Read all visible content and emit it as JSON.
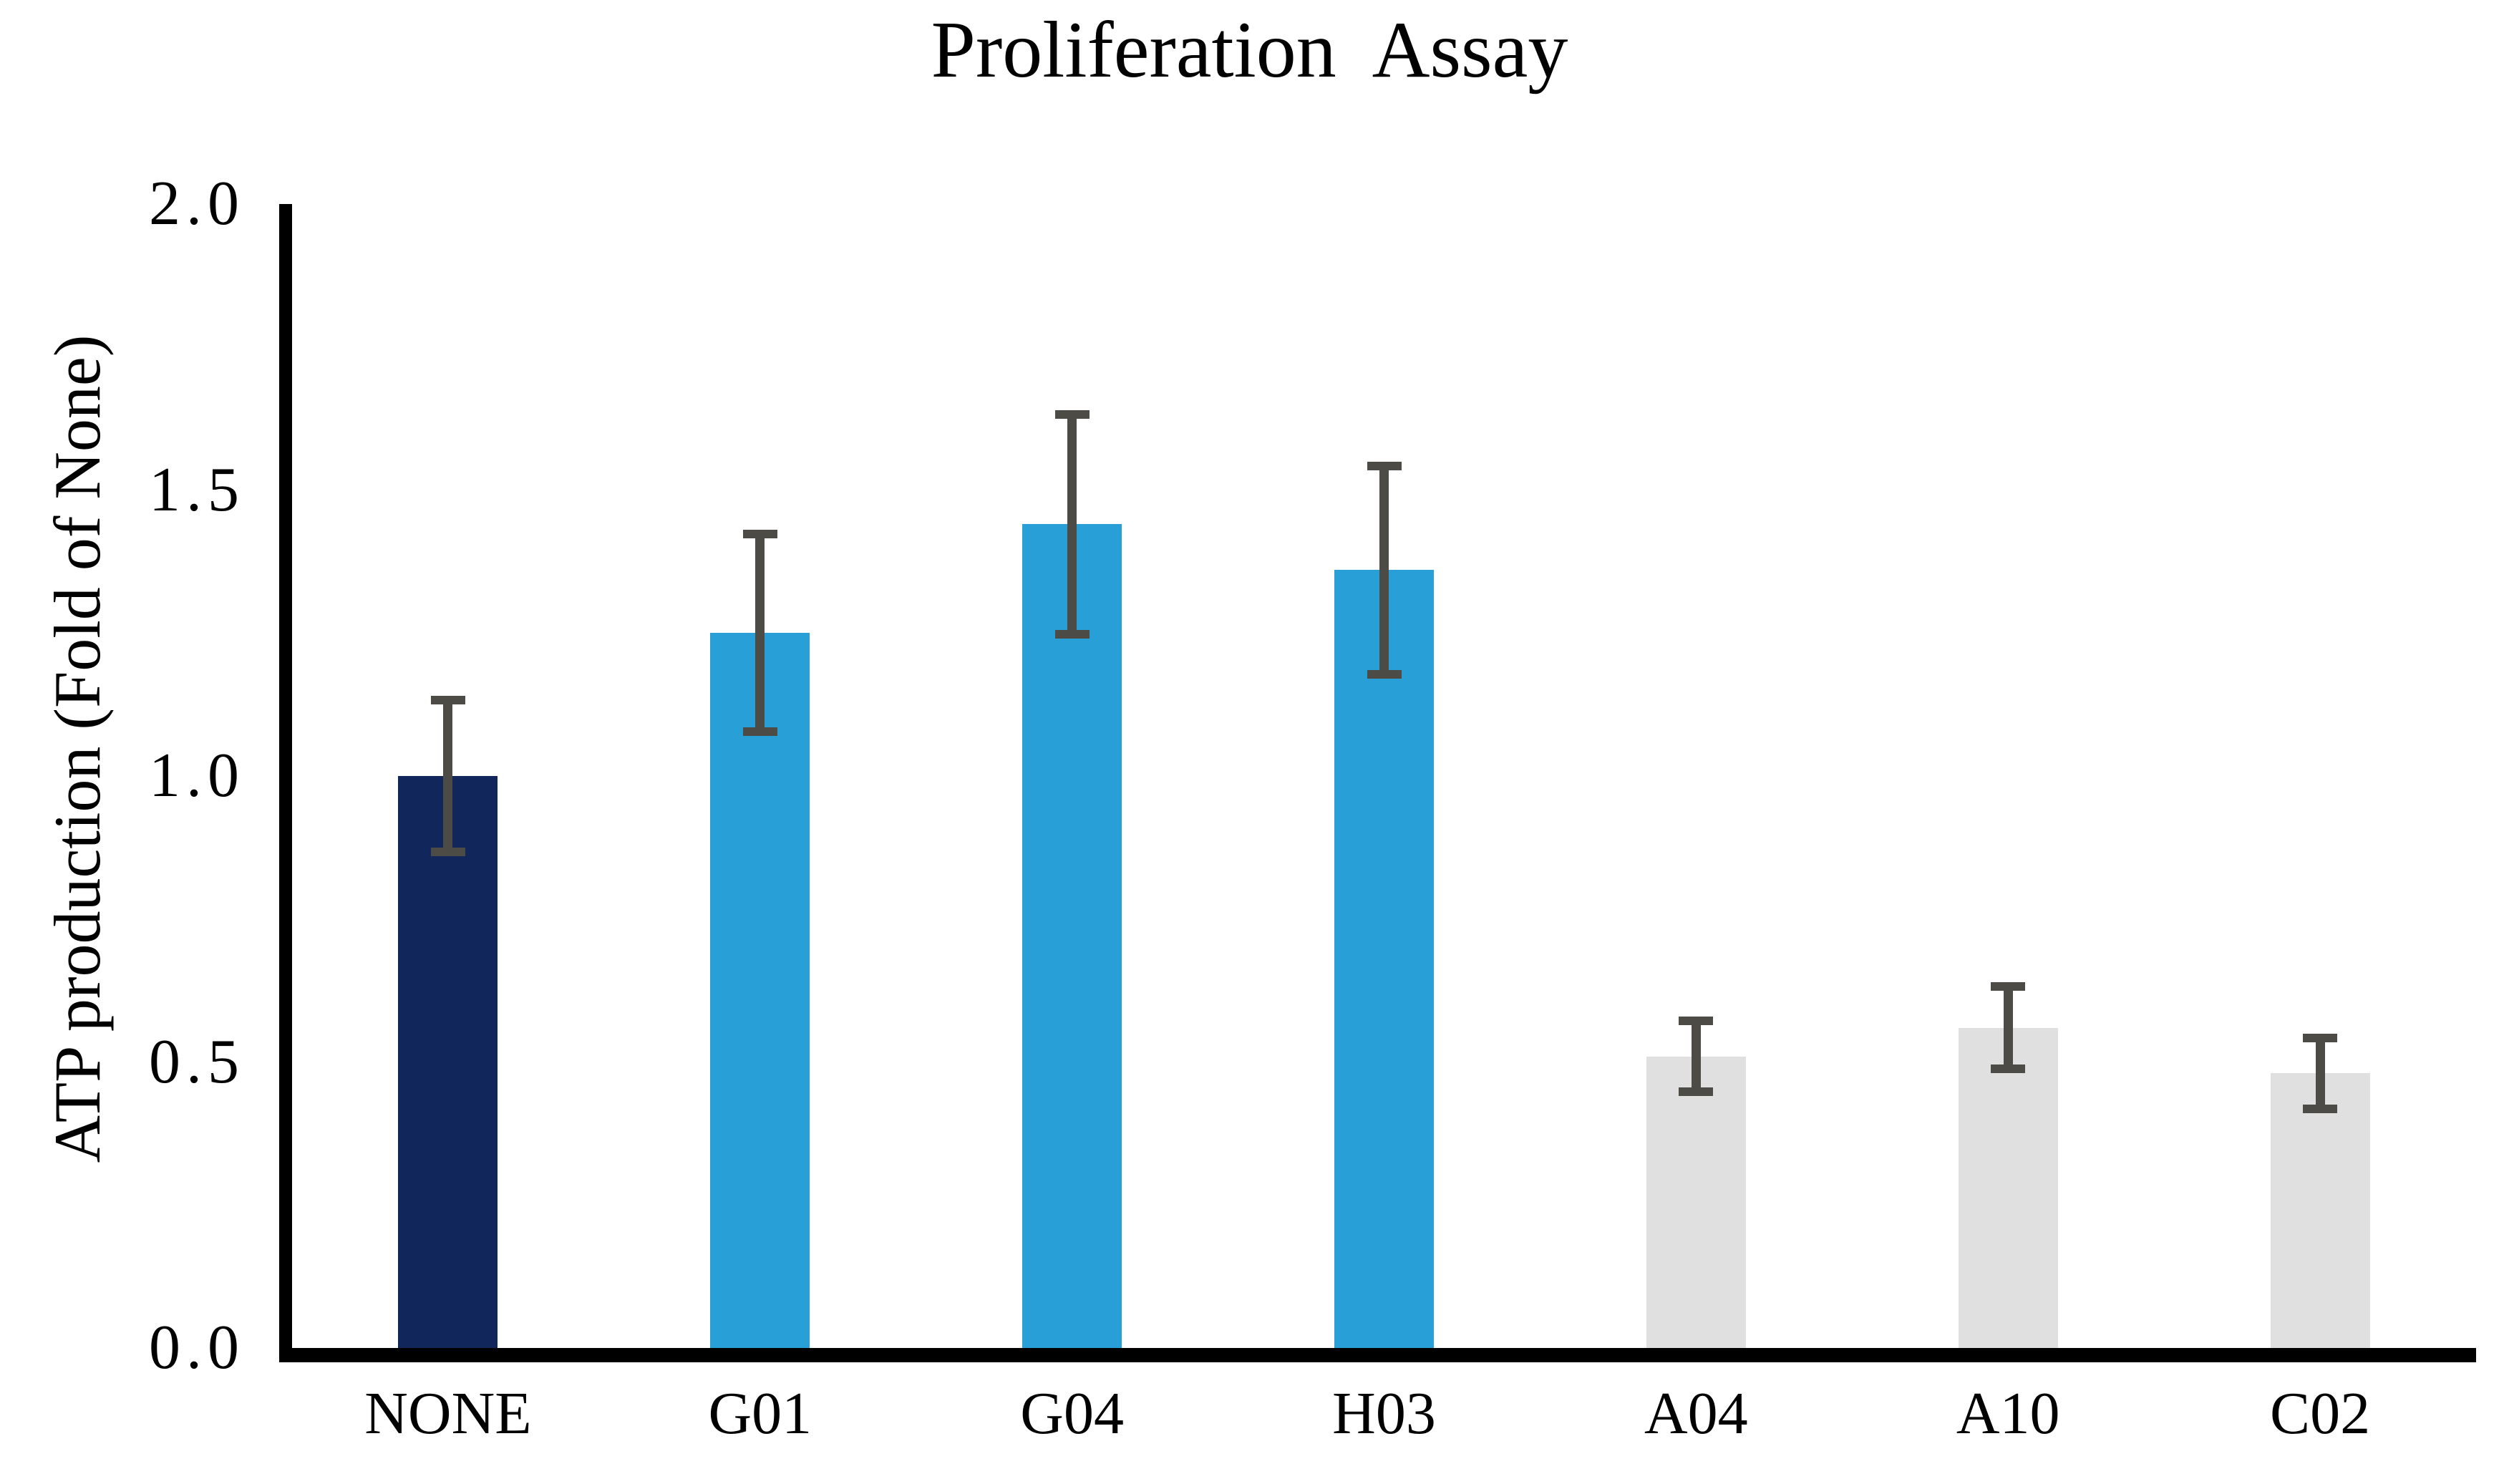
{
  "chart_data": {
    "type": "bar",
    "title": "Proliferation Assay",
    "ylabel": "ATP production (Fold of None)",
    "xlabel": "",
    "categories": [
      "NONE",
      "G01",
      "G04",
      "H03",
      "A04",
      "A10",
      "C02"
    ],
    "values": [
      1.0,
      1.25,
      1.44,
      1.36,
      0.51,
      0.56,
      0.48
    ],
    "errors": [
      0.14,
      0.18,
      0.2,
      0.19,
      0.07,
      0.08,
      0.07
    ],
    "bar_colors": [
      "#11265B",
      "#299FD8",
      "#299FD8",
      "#299FD8",
      "#E0E0E0",
      "#E0E0E0",
      "#E0E0E0"
    ],
    "error_bar_color": "#4D4B46",
    "axis_color": "#000000",
    "yticks": [
      "2.0",
      "1.5",
      "1.0",
      "0.5",
      "0.0"
    ],
    "ylim": [
      0.0,
      2.0
    ],
    "grid": false,
    "legend": null
  }
}
